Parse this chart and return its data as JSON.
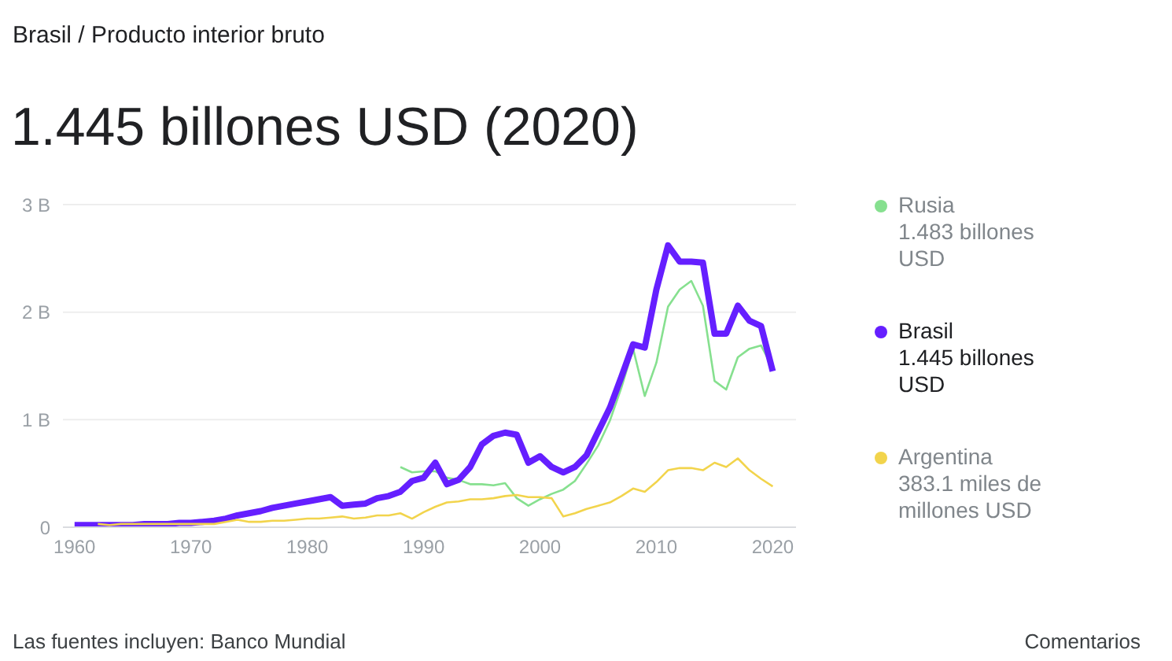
{
  "chart_data": {
    "type": "line",
    "title": "1.445 billones USD (2020)",
    "subtitle": "Brasil / Producto interior bruto",
    "xlim": [
      1959,
      2022
    ],
    "xticks": [
      1960,
      1970,
      1980,
      1990,
      2000,
      2010,
      2020
    ],
    "ylim": [
      0,
      3
    ],
    "yticks": [
      {
        "value": 0,
        "label": "0"
      },
      {
        "value": 1,
        "label": "1 B"
      },
      {
        "value": 2,
        "label": "2 B"
      },
      {
        "value": 3,
        "label": "3 B"
      }
    ],
    "grid": "y",
    "legend": "right",
    "marker": "none",
    "line_style": "solid",
    "series": [
      {
        "name": "Rusia",
        "color": "#86e08f",
        "x": [
          1988,
          1989,
          1990,
          1991,
          1992,
          1993,
          1994,
          1995,
          1996,
          1997,
          1998,
          1999,
          2000,
          2001,
          2002,
          2003,
          2004,
          2005,
          2006,
          2007,
          2008,
          2009,
          2010,
          2011,
          2012,
          2013,
          2014,
          2015,
          2016,
          2017,
          2018,
          2019,
          2020
        ],
        "values": [
          0.56,
          0.51,
          0.52,
          0.52,
          0.46,
          0.44,
          0.4,
          0.4,
          0.39,
          0.41,
          0.27,
          0.2,
          0.26,
          0.31,
          0.35,
          0.43,
          0.59,
          0.76,
          0.99,
          1.3,
          1.66,
          1.22,
          1.53,
          2.05,
          2.21,
          2.29,
          2.06,
          1.36,
          1.28,
          1.58,
          1.66,
          1.69,
          1.48
        ]
      },
      {
        "name": "Brasil",
        "color": "#651fff",
        "x": [
          1960,
          1961,
          1962,
          1963,
          1964,
          1965,
          1966,
          1967,
          1968,
          1969,
          1970,
          1971,
          1972,
          1973,
          1974,
          1975,
          1976,
          1977,
          1978,
          1979,
          1980,
          1981,
          1982,
          1983,
          1984,
          1985,
          1986,
          1987,
          1988,
          1989,
          1990,
          1991,
          1992,
          1993,
          1994,
          1995,
          1996,
          1997,
          1998,
          1999,
          2000,
          2001,
          2002,
          2003,
          2004,
          2005,
          2006,
          2007,
          2008,
          2009,
          2010,
          2011,
          2012,
          2013,
          2014,
          2015,
          2016,
          2017,
          2018,
          2019,
          2020
        ],
        "values": [
          0.02,
          0.02,
          0.02,
          0.02,
          0.02,
          0.02,
          0.03,
          0.03,
          0.03,
          0.04,
          0.04,
          0.05,
          0.06,
          0.08,
          0.11,
          0.13,
          0.15,
          0.18,
          0.2,
          0.22,
          0.24,
          0.26,
          0.28,
          0.2,
          0.21,
          0.22,
          0.27,
          0.29,
          0.33,
          0.43,
          0.46,
          0.6,
          0.4,
          0.44,
          0.56,
          0.77,
          0.85,
          0.88,
          0.86,
          0.6,
          0.66,
          0.56,
          0.51,
          0.56,
          0.67,
          0.89,
          1.11,
          1.4,
          1.7,
          1.67,
          2.21,
          2.62,
          2.47,
          2.47,
          2.46,
          1.8,
          1.8,
          2.06,
          1.92,
          1.87,
          1.45
        ]
      },
      {
        "name": "Argentina",
        "color": "#f2d44c",
        "x": [
          1962,
          1963,
          1964,
          1965,
          1966,
          1967,
          1968,
          1969,
          1970,
          1971,
          1972,
          1973,
          1974,
          1975,
          1976,
          1977,
          1978,
          1979,
          1980,
          1981,
          1982,
          1983,
          1984,
          1985,
          1986,
          1987,
          1988,
          1989,
          1990,
          1991,
          1992,
          1993,
          1994,
          1995,
          1996,
          1997,
          1998,
          1999,
          2000,
          2001,
          2002,
          2003,
          2004,
          2005,
          2006,
          2007,
          2008,
          2009,
          2010,
          2011,
          2012,
          2013,
          2014,
          2015,
          2016,
          2017,
          2018,
          2019,
          2020
        ],
        "values": [
          0.03,
          0.02,
          0.03,
          0.03,
          0.03,
          0.03,
          0.03,
          0.03,
          0.03,
          0.03,
          0.03,
          0.05,
          0.07,
          0.05,
          0.05,
          0.06,
          0.06,
          0.07,
          0.08,
          0.08,
          0.09,
          0.1,
          0.08,
          0.09,
          0.11,
          0.11,
          0.13,
          0.08,
          0.14,
          0.19,
          0.23,
          0.24,
          0.26,
          0.26,
          0.27,
          0.29,
          0.3,
          0.28,
          0.28,
          0.27,
          0.1,
          0.13,
          0.17,
          0.2,
          0.23,
          0.29,
          0.36,
          0.33,
          0.42,
          0.53,
          0.55,
          0.55,
          0.53,
          0.6,
          0.56,
          0.64,
          0.53,
          0.45,
          0.38
        ]
      }
    ],
    "annotations": [
      "1.483 billones USD",
      "1.445 billones USD",
      "383.1 miles de millones USD",
      "Las fuentes incluyen: Banco Mundial",
      "Comentarios"
    ]
  }
}
